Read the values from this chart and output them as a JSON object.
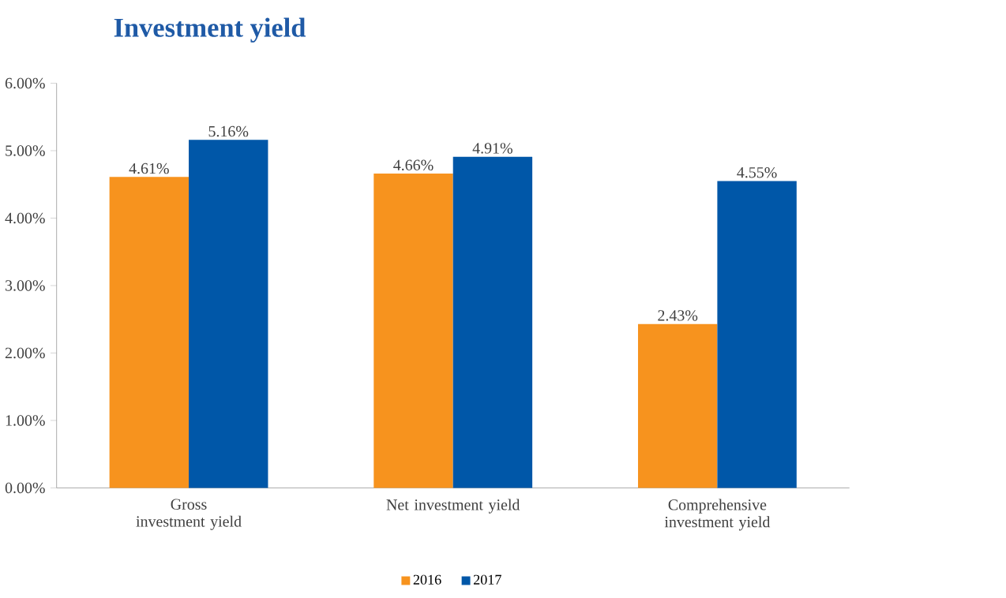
{
  "chart_data": {
    "type": "bar",
    "title": "Investment yield",
    "categories": [
      "Gross investment yield",
      "Net investment yield",
      "Comprehensive investment yield"
    ],
    "series": [
      {
        "name": "2016",
        "color": "#f7931e",
        "values": [
          4.61,
          4.66,
          2.43
        ],
        "value_labels": [
          "4.61%",
          "4.66%",
          "2.43%"
        ]
      },
      {
        "name": "2017",
        "color": "#0057a8",
        "values": [
          5.16,
          4.91,
          4.55
        ],
        "value_labels": [
          "5.16%",
          "4.91%",
          "4.55%"
        ]
      }
    ],
    "ylim": [
      0,
      6
    ],
    "yticks": [
      {
        "value": 0,
        "label": "0.00%"
      },
      {
        "value": 1,
        "label": "1.00%"
      },
      {
        "value": 2,
        "label": "2.00%"
      },
      {
        "value": 3,
        "label": "3.00%"
      },
      {
        "value": 4,
        "label": "4.00%"
      },
      {
        "value": 5,
        "label": "5.00%"
      },
      {
        "value": 6,
        "label": "6.00%"
      }
    ],
    "legend": "bottom",
    "grid": false
  }
}
